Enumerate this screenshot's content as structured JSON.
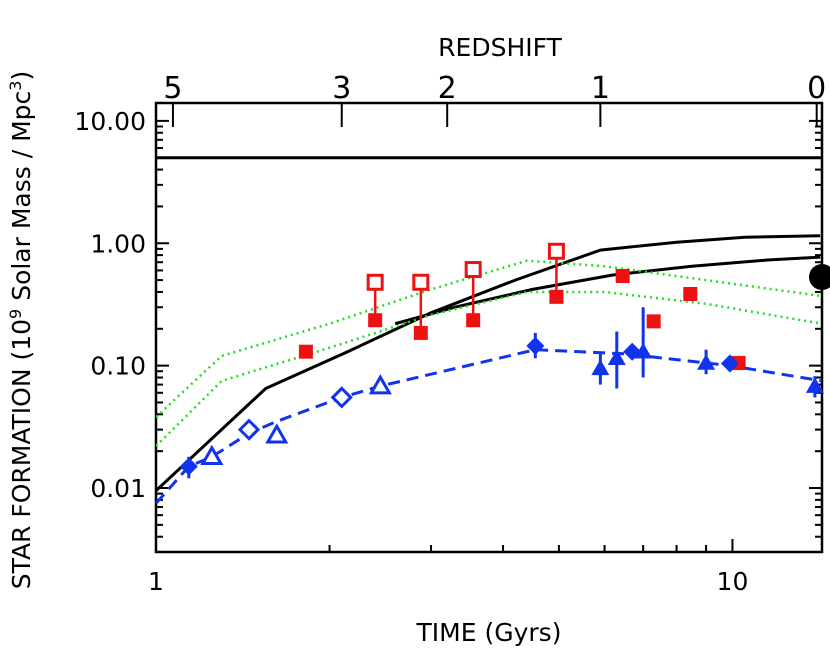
{
  "chart_data": {
    "type": "scatter",
    "title": "",
    "xlabel": "TIME (Gyrs)",
    "ylabel": "STAR FORMATION (10^9 Solar Mass / Mpc^3)",
    "ylabel_parts": {
      "main": "STAR FORMATION (10",
      "sup1": "9",
      "mid": " Solar Mass / Mpc",
      "sup2": "3",
      "end": ")"
    },
    "top_label": "REDSHIFT",
    "x_scale": "log",
    "y_scale": "log",
    "xlim": [
      1,
      14.3
    ],
    "ylim": [
      0.003,
      14
    ],
    "x_ticks": [
      {
        "value": 1,
        "label": "1"
      },
      {
        "value": 10,
        "label": "10"
      }
    ],
    "y_ticks": [
      {
        "value": 0.01,
        "label": "0.01"
      },
      {
        "value": 0.1,
        "label": "0.10"
      },
      {
        "value": 1,
        "label": "1.00"
      },
      {
        "value": 10,
        "label": "10.00"
      }
    ],
    "top_ticks": [
      {
        "time": 1.07,
        "label": "5"
      },
      {
        "time": 2.1,
        "label": "3"
      },
      {
        "time": 3.2,
        "label": "2"
      },
      {
        "time": 5.9,
        "label": "1"
      },
      {
        "time": 14.0,
        "label": "0"
      }
    ],
    "series": [
      {
        "style": "black-solid",
        "color": "#000000",
        "x": [
          1,
          1.55,
          2.15,
          3.0,
          4.2,
          5.9,
          8.0,
          10.5,
          14.2
        ],
        "y": [
          0.0095,
          0.065,
          0.13,
          0.27,
          0.5,
          0.88,
          1.02,
          1.12,
          1.15
        ]
      },
      {
        "style": "black-solid",
        "color": "#000000",
        "x": [
          2.6,
          3.3,
          4.5,
          6.2,
          8.5,
          11.5,
          14.2
        ],
        "y": [
          0.22,
          0.3,
          0.42,
          0.55,
          0.65,
          0.73,
          0.77
        ]
      },
      {
        "style": "black-solid-horizontal",
        "color": "#000000",
        "x": [
          1,
          14.3
        ],
        "y": [
          5.0,
          5.0
        ]
      },
      {
        "style": "green-dotted",
        "color": "#22dd22",
        "x": [
          1,
          1.3,
          2.0,
          3.0,
          4.4,
          6.0,
          9.0,
          14.3
        ],
        "y": [
          0.038,
          0.12,
          0.22,
          0.42,
          0.72,
          0.65,
          0.5,
          0.37
        ]
      },
      {
        "style": "green-dotted",
        "color": "#22dd22",
        "x": [
          1,
          1.3,
          2.0,
          3.0,
          4.4,
          6.0,
          9.0,
          14.3
        ],
        "y": [
          0.022,
          0.075,
          0.14,
          0.26,
          0.4,
          0.4,
          0.32,
          0.22
        ]
      },
      {
        "style": "blue-dashed",
        "color": "#1133ee",
        "x": [
          1,
          1.14,
          1.25,
          1.45,
          1.62,
          2.1,
          2.45,
          4.55,
          6.5,
          9.9,
          14.3
        ],
        "y": [
          0.0075,
          0.015,
          0.018,
          0.028,
          0.035,
          0.055,
          0.068,
          0.135,
          0.125,
          0.1,
          0.075
        ]
      }
    ],
    "markers": {
      "red_open_squares": [
        {
          "x": 2.4,
          "y": 0.48,
          "filled_y": 0.235
        },
        {
          "x": 2.88,
          "y": 0.48,
          "filled_y": 0.185
        },
        {
          "x": 3.55,
          "y": 0.61,
          "filled_y": 0.235
        },
        {
          "x": 4.95,
          "y": 0.86,
          "filled_y": 0.365
        }
      ],
      "red_filled_squares": [
        {
          "x": 1.82,
          "y": 0.13
        },
        {
          "x": 6.45,
          "y": 0.54
        },
        {
          "x": 7.3,
          "y": 0.23
        },
        {
          "x": 8.45,
          "y": 0.385
        },
        {
          "x": 10.25,
          "y": 0.105
        }
      ],
      "blue_open_diamonds": [
        {
          "x": 1.45,
          "y": 0.03,
          "err": [
            0.026,
            0.035
          ]
        },
        {
          "x": 2.1,
          "y": 0.055,
          "err": [
            0.048,
            0.063
          ]
        }
      ],
      "blue_open_triangles": [
        {
          "x": 1.25,
          "y": 0.018,
          "err": [
            0.016,
            0.02
          ]
        },
        {
          "x": 1.62,
          "y": 0.027,
          "err": [
            0.024,
            0.03
          ]
        },
        {
          "x": 2.45,
          "y": 0.068,
          "err": [
            0.06,
            0.076
          ]
        }
      ],
      "blue_filled_diamonds": [
        {
          "x": 1.14,
          "y": 0.015,
          "err": [
            0.012,
            0.018
          ]
        },
        {
          "x": 4.55,
          "y": 0.145,
          "err": [
            0.115,
            0.185
          ]
        },
        {
          "x": 6.7,
          "y": 0.13,
          "err": [
            0.115,
            0.145
          ]
        },
        {
          "x": 9.9,
          "y": 0.104,
          "err": [
            0.098,
            0.11
          ]
        }
      ],
      "blue_filled_triangles": [
        {
          "x": 5.9,
          "y": 0.095,
          "err": [
            0.07,
            0.13
          ]
        },
        {
          "x": 6.3,
          "y": 0.115,
          "err": [
            0.065,
            0.19
          ]
        },
        {
          "x": 7.0,
          "y": 0.13,
          "err": [
            0.08,
            0.3
          ]
        },
        {
          "x": 9.0,
          "y": 0.105,
          "err": [
            0.085,
            0.135
          ]
        },
        {
          "x": 13.9,
          "y": 0.068,
          "err": [
            0.055,
            0.082
          ]
        }
      ],
      "black_dot": {
        "x": 14.3,
        "y": 0.53
      }
    }
  }
}
